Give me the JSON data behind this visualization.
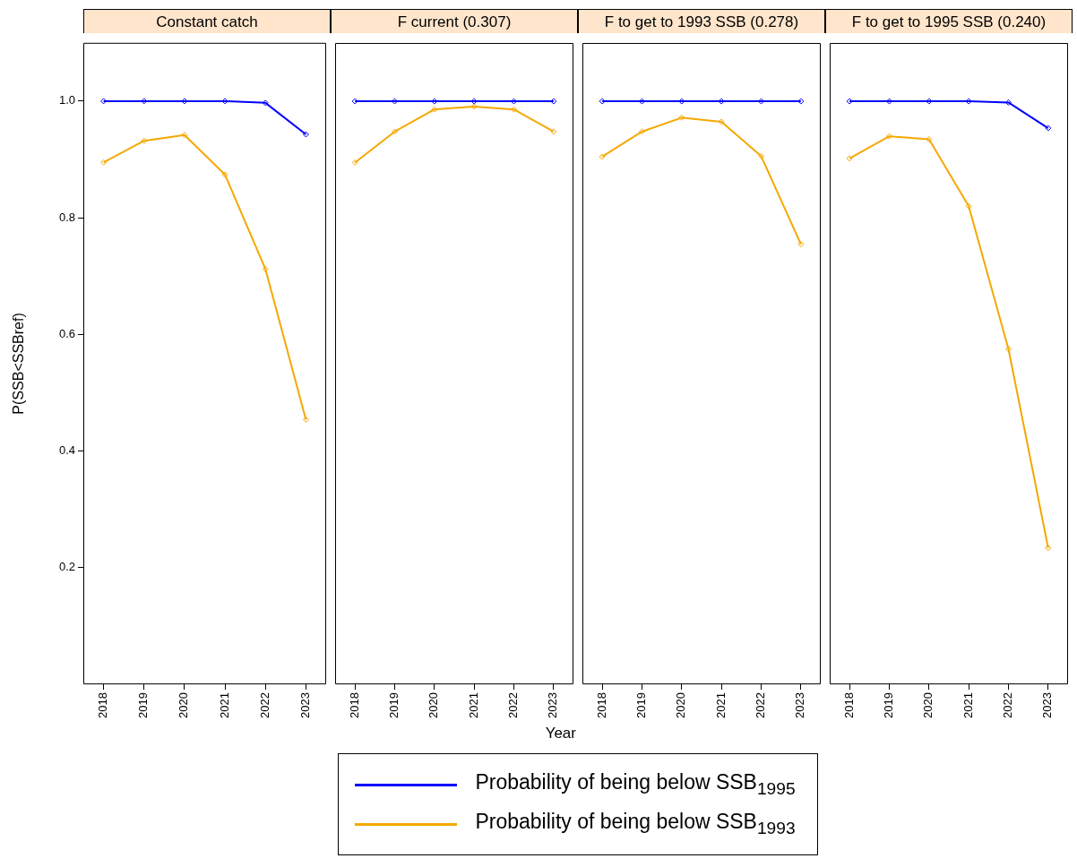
{
  "chart_data": [
    {
      "type": "line",
      "title": "Constant catch",
      "ylabel": "P(SSB<SSBref)",
      "categories": [
        "2018",
        "2019",
        "2020",
        "2021",
        "2022",
        "2023"
      ],
      "ylim": [
        0,
        1.1
      ],
      "yticks": [
        {
          "value": 0.2,
          "label": "0.2"
        },
        {
          "value": 0.4,
          "label": "0.4"
        },
        {
          "value": 0.6,
          "label": "0.6"
        },
        {
          "value": 0.8,
          "label": "0.8"
        },
        {
          "value": 1,
          "label": "1.0"
        }
      ],
      "marker": "diamond",
      "grid": false,
      "legend": "bottom",
      "series": [
        {
          "name": "Probability of being below SSB$_{1995}$",
          "color": "#0000ff",
          "values": [
            1,
            1,
            1,
            1,
            0.997,
            0.943
          ]
        },
        {
          "name": "Probability of being below SSB$_{1993}$",
          "color": "#f5a800",
          "values": [
            0.895,
            0.932,
            0.942,
            0.874,
            0.712,
            0.454
          ]
        }
      ]
    },
    {
      "type": "line",
      "title": "F current (0.307)",
      "xlabel": "Year",
      "categories": [
        "2018",
        "2019",
        "2020",
        "2021",
        "2022",
        "2023"
      ],
      "ylim": [
        0,
        1.1
      ],
      "tick_labels": "x",
      "marker": "diamond",
      "grid": false,
      "series": [
        {
          "color": "#0000ff",
          "values": [
            1,
            1,
            1,
            1,
            1,
            1
          ]
        },
        {
          "color": "#f5a800",
          "values": [
            0.895,
            0.948,
            0.986,
            0.991,
            0.986,
            0.948
          ]
        }
      ]
    },
    {
      "type": "line",
      "title": "F to get to 1993 SSB (0.278)",
      "categories": [
        "2018",
        "2019",
        "2020",
        "2021",
        "2022",
        "2023"
      ],
      "ylim": [
        0,
        1.1
      ],
      "tick_labels": "x",
      "marker": "diamond",
      "grid": false,
      "series": [
        {
          "color": "#0000ff",
          "values": [
            1,
            1,
            1,
            1,
            1,
            1
          ]
        },
        {
          "color": "#f5a800",
          "values": [
            0.905,
            0.948,
            0.972,
            0.965,
            0.906,
            0.755
          ]
        }
      ]
    },
    {
      "type": "line",
      "title": "F to get to 1995 SSB (0.240)",
      "categories": [
        "2018",
        "2019",
        "2020",
        "2021",
        "2022",
        "2023"
      ],
      "ylim": [
        0,
        1.1
      ],
      "tick_labels": "x",
      "marker": "diamond",
      "grid": false,
      "series": [
        {
          "color": "#0000ff",
          "values": [
            1,
            1,
            1,
            1,
            0.998,
            0.954
          ]
        },
        {
          "color": "#f5a800",
          "values": [
            0.902,
            0.94,
            0.935,
            0.82,
            0.575,
            0.234
          ]
        }
      ]
    }
  ]
}
